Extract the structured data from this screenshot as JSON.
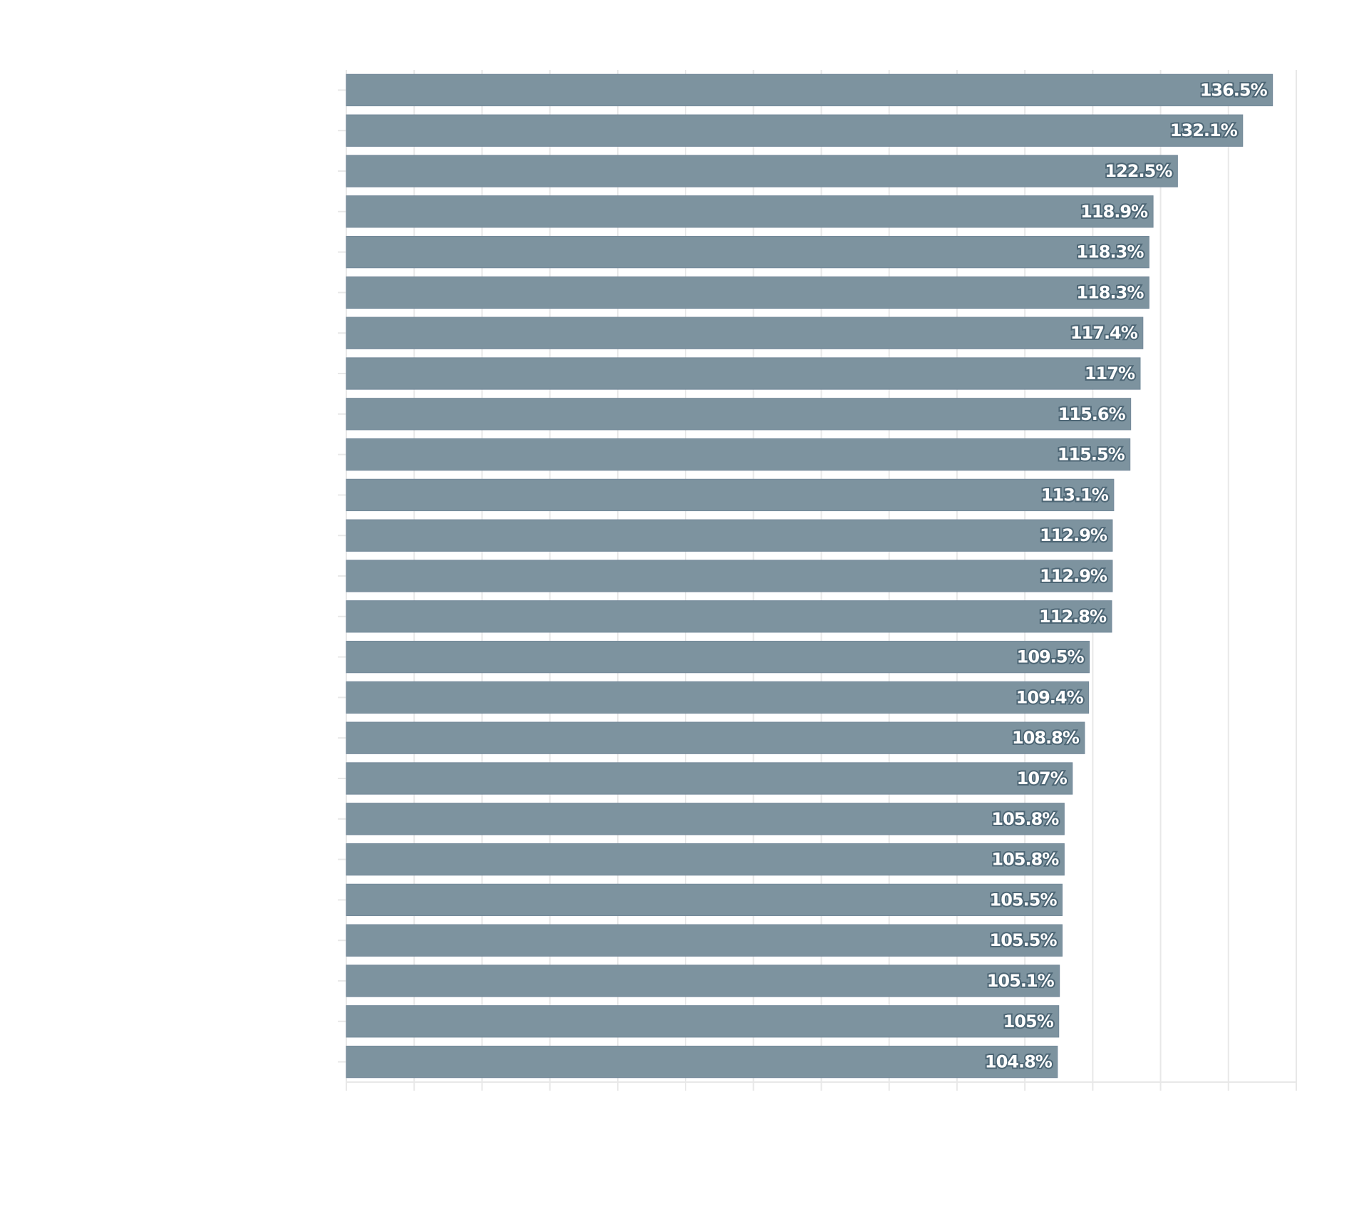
{
  "chart_data": {
    "type": "barh",
    "categories": [
      null,
      null,
      null,
      null,
      null,
      null,
      null,
      null,
      null,
      null,
      null,
      null,
      null,
      null,
      null,
      null,
      null,
      null,
      null,
      null,
      null,
      null,
      null,
      null,
      null
    ],
    "values": [
      136.5,
      132.1,
      122.5,
      118.9,
      118.3,
      118.3,
      117.4,
      117,
      115.6,
      115.5,
      113.1,
      112.9,
      112.9,
      112.8,
      109.5,
      109.4,
      108.8,
      107,
      105.8,
      105.8,
      105.5,
      105.5,
      105.1,
      105,
      104.8
    ],
    "value_labels": [
      "136.5%",
      "132.1%",
      "122.5%",
      "118.9%",
      "118.3%",
      "118.3%",
      "117.4%",
      "117%",
      "115.6%",
      "115.5%",
      "113.1%",
      "112.9%",
      "112.9%",
      "112.8%",
      "109.5%",
      "109.4%",
      "108.8%",
      "107%",
      "105.8%",
      "105.8%",
      "105.5%",
      "105.5%",
      "105.1%",
      "105%",
      "104.8%"
    ],
    "color": "#7d939f",
    "xlim": [
      0,
      140
    ],
    "xticks": [
      0,
      10,
      20,
      30,
      40,
      50,
      60,
      70,
      80,
      90,
      100,
      110,
      120,
      130,
      140
    ],
    "grid": true
  }
}
